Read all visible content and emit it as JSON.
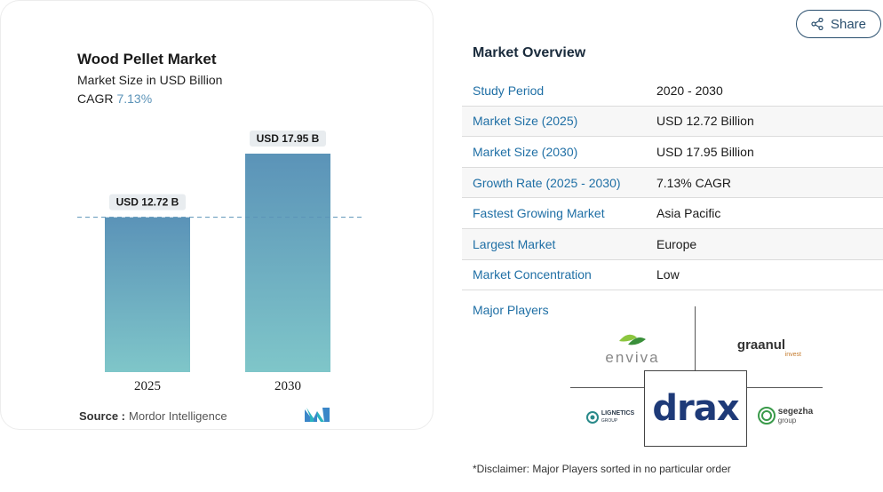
{
  "chart_data": {
    "type": "bar",
    "title": "Wood Pellet Market",
    "subtitle": "Market Size in USD Billion",
    "cagr_label": "CAGR",
    "cagr_value": "7.13%",
    "categories": [
      "2025",
      "2030"
    ],
    "values": [
      12.72,
      17.95
    ],
    "data_labels": [
      "USD 12.72 B",
      "USD 17.95 B"
    ],
    "reference_line": 12.72,
    "ylim": [
      0,
      17.95
    ],
    "bar_color_top": "#5b93b8",
    "bar_color_bottom": "#7fc6c9",
    "label_bg": "#e8ecef"
  },
  "source": {
    "label": "Source :",
    "value": "Mordor Intelligence"
  },
  "share": {
    "label": "Share",
    "icon": "share-icon"
  },
  "overview": {
    "title": "Market Overview",
    "rows": [
      {
        "key": "Study Period",
        "value": "2020 - 2030"
      },
      {
        "key": "Market Size (2025)",
        "value": "USD 12.72 Billion"
      },
      {
        "key": "Market Size (2030)",
        "value": "USD 17.95 Billion"
      },
      {
        "key": "Growth Rate (2025 - 2030)",
        "value": "7.13% CAGR"
      },
      {
        "key": "Fastest Growing Market",
        "value": "Asia Pacific"
      },
      {
        "key": "Largest Market",
        "value": "Europe"
      },
      {
        "key": "Market Concentration",
        "value": "Low"
      }
    ]
  },
  "players": {
    "label": "Major Players",
    "enviva": "enviva",
    "graanul": "graanul",
    "graanul_sub": "invest",
    "drax": "drax",
    "lignetics": "LIGNETICS",
    "lignetics_sub": "GROUP",
    "segezha": "segezha",
    "segezha_sub": "group"
  },
  "disclaimer": "*Disclaimer: Major Players sorted in no particular order"
}
